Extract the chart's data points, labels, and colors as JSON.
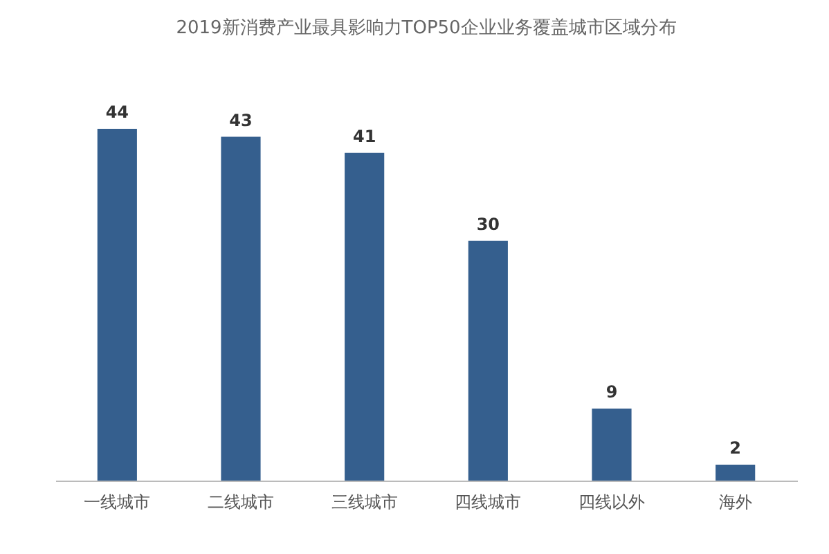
{
  "chart_data": {
    "type": "bar",
    "title": "2019新消费产业最具影响力TOP50企业业务覆盖城市区域分布",
    "categories": [
      "一线城市",
      "二线城市",
      "三线城市",
      "四线城市",
      "四线以外",
      "海外"
    ],
    "values": [
      44,
      43,
      41,
      30,
      9,
      2
    ],
    "color": "#355f8e",
    "data_labels": true
  }
}
